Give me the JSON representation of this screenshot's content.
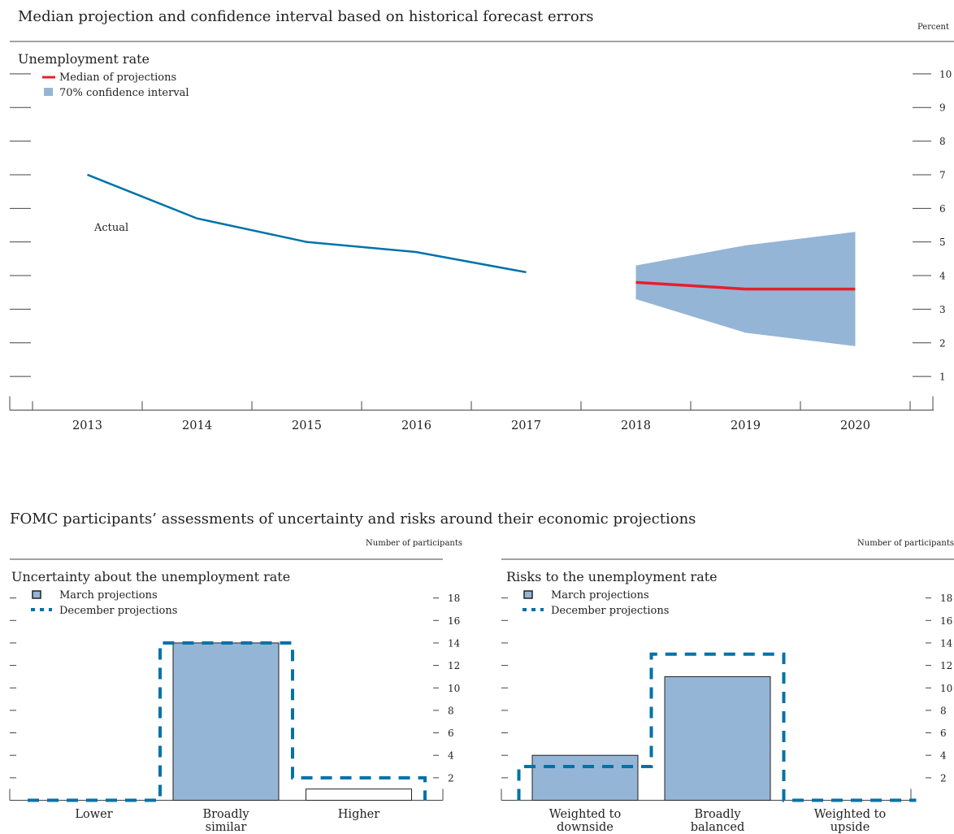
{
  "colors": {
    "actual_line": "#0072a8",
    "median_line": "#e3202e",
    "band_fill": "#95b5d6",
    "march_bar": "#95b5d6",
    "december_outline": "#0072a8"
  },
  "top_section": {
    "title": "Median projection and confidence interval based on historical forecast errors",
    "unit_label": "Percent"
  },
  "bottom_section": {
    "title": "FOMC participants’ assessments of uncertainty and risks around their economic projections"
  },
  "chart_data": [
    {
      "type": "line",
      "title": "Unemployment rate",
      "unit_label": "Percent",
      "x": [
        "2013",
        "2014",
        "2015",
        "2016",
        "2017",
        "2018",
        "2019",
        "2020"
      ],
      "ylim": [
        0,
        11
      ],
      "yticks": [
        1,
        2,
        3,
        4,
        5,
        6,
        7,
        8,
        9,
        10
      ],
      "legend": {
        "median_label": "Median of projections",
        "band_label": "70% confidence interval"
      },
      "annotation": "Actual",
      "series": [
        {
          "role": "actual",
          "x": [
            "2013",
            "2014",
            "2015",
            "2016",
            "2017"
          ],
          "values": [
            7.0,
            5.7,
            5.0,
            4.7,
            4.1
          ]
        },
        {
          "role": "median",
          "name": "Median of projections",
          "x": [
            "2018",
            "2019",
            "2020"
          ],
          "values": [
            3.8,
            3.6,
            3.6
          ]
        },
        {
          "role": "band",
          "name": "70% confidence interval",
          "x": [
            "2018",
            "2019",
            "2020"
          ],
          "lower": [
            3.3,
            2.3,
            1.9
          ],
          "upper": [
            4.3,
            4.9,
            5.3
          ]
        }
      ]
    },
    {
      "type": "bar",
      "title": "Uncertainty about the unemployment rate",
      "unit_label": "Number of participants",
      "categories": [
        [
          "Lower"
        ],
        [
          "Broadly",
          "similar"
        ],
        [
          "Higher"
        ]
      ],
      "ylim": [
        0,
        20
      ],
      "yticks": [
        2,
        4,
        6,
        8,
        10,
        12,
        14,
        16,
        18
      ],
      "legend": {
        "march_label": "March projections",
        "december_label": "December projections"
      },
      "series": [
        {
          "name": "March projections",
          "values": [
            0,
            14,
            1
          ]
        },
        {
          "name": "December projections",
          "values": [
            0,
            14,
            2
          ]
        }
      ]
    },
    {
      "type": "bar",
      "title": "Risks to the unemployment rate",
      "unit_label": "Number of participants",
      "categories": [
        [
          "Weighted to",
          "downside"
        ],
        [
          "Broadly",
          "balanced"
        ],
        [
          "Weighted to",
          "upside"
        ]
      ],
      "ylim": [
        0,
        20
      ],
      "yticks": [
        2,
        4,
        6,
        8,
        10,
        12,
        14,
        16,
        18
      ],
      "legend": {
        "march_label": "March projections",
        "december_label": "December projections"
      },
      "series": [
        {
          "name": "March projections",
          "values": [
            4,
            11,
            0
          ]
        },
        {
          "name": "December projections",
          "values": [
            3,
            13,
            0
          ]
        }
      ]
    }
  ]
}
